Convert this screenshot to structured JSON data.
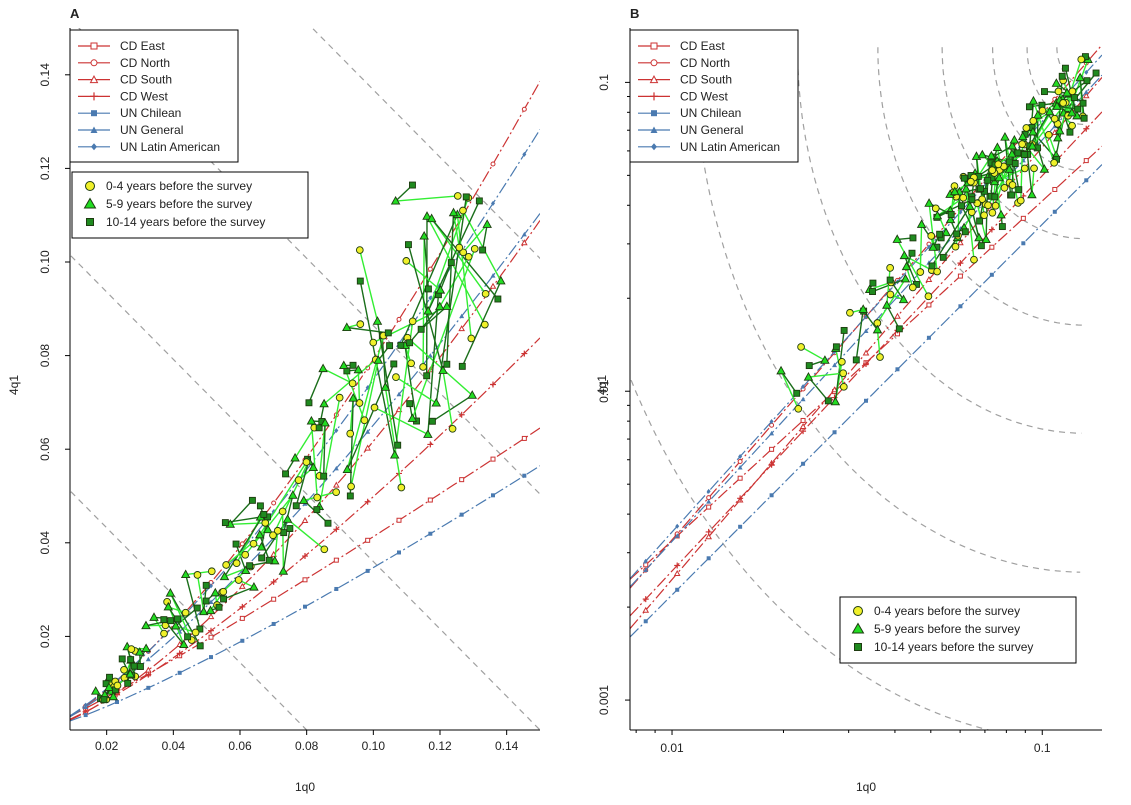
{
  "chart_data": [
    {
      "type": "line",
      "panel": "A",
      "xlabel": "1q0",
      "ylabel": "4q1",
      "xscale": "linear",
      "yscale": "linear",
      "xlim": [
        0.009,
        0.15
      ],
      "ylim": [
        0.0,
        0.15
      ],
      "xticks": [
        0.02,
        0.04,
        0.06,
        0.08,
        0.1,
        0.12,
        0.14
      ],
      "xtick_labels": [
        "0.02",
        "0.04",
        "0.06",
        "0.08",
        "0.10",
        "0.12",
        "0.14"
      ],
      "yticks": [
        0.02,
        0.04,
        0.06,
        0.08,
        0.1,
        0.12,
        0.14
      ],
      "ytick_labels": [
        "0.02",
        "0.04",
        "0.06",
        "0.08",
        "0.10",
        "0.12",
        "0.14"
      ],
      "grid": false,
      "legends": [
        "top-left",
        "upper-left"
      ]
    },
    {
      "type": "line",
      "panel": "B",
      "xlabel": "1q0",
      "ylabel": "4q1",
      "xscale": "log",
      "yscale": "log",
      "xlim": [
        0.0077,
        0.145
      ],
      "ylim": [
        0.0008,
        0.15
      ],
      "xticks": [
        0.01,
        0.1
      ],
      "xtick_labels": [
        "0.01",
        "0.1"
      ],
      "yticks": [
        0.001,
        0.01,
        0.1
      ],
      "ytick_labels": [
        "0.001",
        "0.01",
        "0.1"
      ],
      "grid": false,
      "legends": [
        "top-left",
        "bottom-right"
      ]
    }
  ],
  "panels": {
    "a_label": "A",
    "b_label": "B"
  },
  "model_legend": {
    "items": [
      {
        "label": "CD East",
        "color": "#cc3333",
        "marker": "open-square"
      },
      {
        "label": "CD North",
        "color": "#cc3333",
        "marker": "open-circle"
      },
      {
        "label": "CD South",
        "color": "#cc3333",
        "marker": "open-triangle"
      },
      {
        "label": "CD West",
        "color": "#cc3333",
        "marker": "plus"
      },
      {
        "label": "UN Chilean",
        "color": "#4a7ab0",
        "marker": "filled-square"
      },
      {
        "label": "UN General",
        "color": "#4a7ab0",
        "marker": "filled-triangle"
      },
      {
        "label": "UN Latin American",
        "color": "#4a7ab0",
        "marker": "filled-diamond"
      }
    ]
  },
  "period_legend": {
    "items": [
      {
        "label": "0-4 years before the survey",
        "color": "#f0f02a",
        "marker": "circle"
      },
      {
        "label": "5-9 years before the survey",
        "color": "#22dd22",
        "marker": "triangle"
      },
      {
        "label": "10-14 years before the survey",
        "color": "#1f8a1f",
        "marker": "square"
      }
    ]
  },
  "colors": {
    "cd_line": "#cc3333",
    "un_line": "#4a7ab0",
    "reference": "#a0a0a0",
    "link_bright": "#33ee33",
    "link_dark": "#1a6e1a",
    "point_outline": "#1e3b10"
  }
}
